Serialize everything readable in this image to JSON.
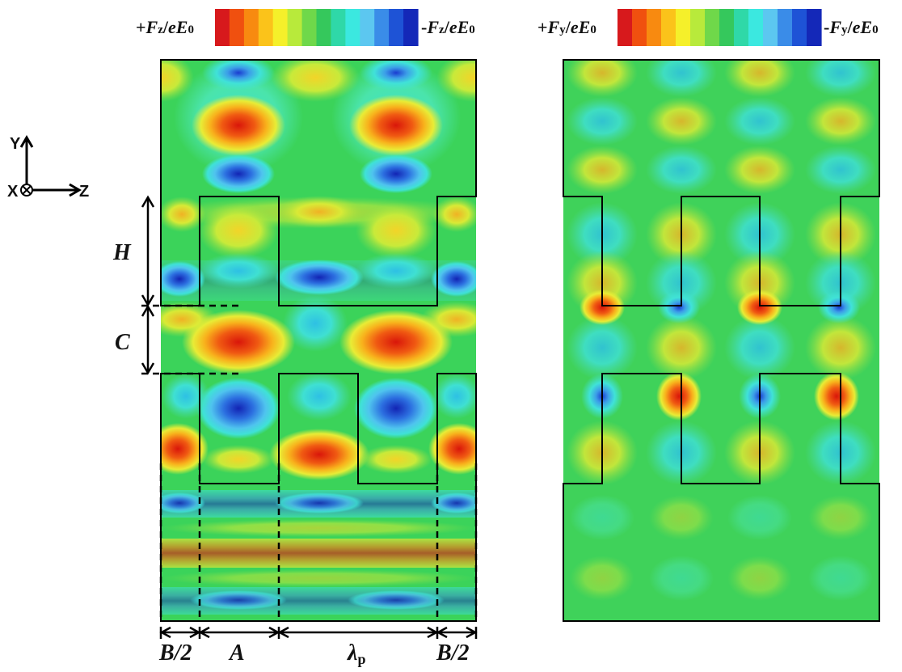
{
  "colorbars": {
    "left": {
      "plus": "+Fz/eE0",
      "minus": "-Fz/eE0",
      "plus_parts": [
        "+",
        "F",
        "z",
        "/",
        "eE",
        "0"
      ],
      "minus_parts": [
        "-",
        "F",
        "z",
        "/",
        "eE",
        "0"
      ]
    },
    "right": {
      "plus": "+Fy/eE0",
      "minus": "-Fy/eE0",
      "plus_parts": [
        "+",
        "F",
        "y",
        "/",
        "eE",
        "0"
      ],
      "minus_parts": [
        "-",
        "F",
        "y",
        "/",
        "eE",
        "0"
      ]
    },
    "colors": [
      "#d7191c",
      "#f0500f",
      "#f88a10",
      "#fbc31a",
      "#f5f02a",
      "#b8ea3b",
      "#6fd84a",
      "#35c85c",
      "#2fd8a8",
      "#3be8e0",
      "#5cc7f0",
      "#3a8ce8",
      "#1e53d6",
      "#1428b8"
    ]
  },
  "axes": {
    "y": "Y",
    "x": "X",
    "z": "Z"
  },
  "dimensions": {
    "H": "H",
    "C": "C",
    "B_half_left": "B/2",
    "A": "A",
    "lambda_p": "λp",
    "lambda_main": "λ",
    "lambda_sub": "p",
    "B_half_right": "B/2"
  },
  "palette": {
    "background": "#3bd35a",
    "red": "#e01e0e",
    "orange": "#f5a21a",
    "yellow": "#e8ee3a",
    "cyan": "#3fe0d8",
    "blue": "#1a3fd6",
    "outline": "#000000"
  }
}
